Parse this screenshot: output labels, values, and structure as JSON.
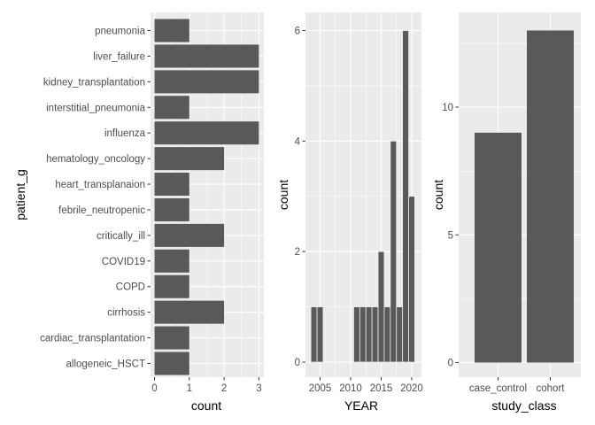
{
  "chart_data": [
    {
      "type": "bar",
      "orientation": "horizontal",
      "categories": [
        "pneumonia",
        "liver_failure",
        "kidney_transplantation",
        "interstitial_pneumonia",
        "influenza",
        "hematology_oncology",
        "heart_transplanaion",
        "febrile_neutropenic",
        "critically_ill",
        "COVID19",
        "COPD",
        "cirrhosis",
        "cardiac_transplantation",
        "allogeneic_HSCT"
      ],
      "values": [
        1,
        3,
        3,
        1,
        3,
        2,
        1,
        1,
        2,
        1,
        1,
        2,
        1,
        1
      ],
      "xlabel": "count",
      "ylabel": "patient_g",
      "xlim": [
        0,
        3
      ],
      "xticks": [
        "0",
        "1",
        "2",
        "3"
      ],
      "grid": true,
      "colors": {
        "bar": "#595959",
        "panel": "#ebebeb",
        "grid": "#ffffff"
      }
    },
    {
      "type": "bar",
      "orientation": "vertical",
      "x": [
        2004,
        2005,
        2011,
        2012,
        2013,
        2014,
        2015,
        2016,
        2017,
        2018,
        2019,
        2020
      ],
      "values": [
        1,
        1,
        1,
        1,
        1,
        1,
        2,
        1,
        4,
        1,
        6,
        3
      ],
      "xlabel": "YEAR",
      "ylabel": "count",
      "xlim": [
        2003.9,
        2021.2
      ],
      "ylim": [
        0,
        6.3
      ],
      "xticks": [
        "2005",
        "2010",
        "2015",
        "2020"
      ],
      "yticks": [
        "0",
        "2",
        "4",
        "6"
      ],
      "grid": true,
      "colors": {
        "bar": "#595959",
        "panel": "#ebebeb",
        "grid": "#ffffff"
      }
    },
    {
      "type": "bar",
      "orientation": "vertical",
      "categories": [
        "case_control",
        "cohort"
      ],
      "values": [
        9,
        13
      ],
      "xlabel": "study_class",
      "ylabel": "count",
      "ylim": [
        0,
        13.65
      ],
      "yticks": [
        "0",
        "5",
        "10"
      ],
      "grid": true,
      "colors": {
        "bar": "#595959",
        "panel": "#ebebeb",
        "grid": "#ffffff"
      }
    }
  ]
}
